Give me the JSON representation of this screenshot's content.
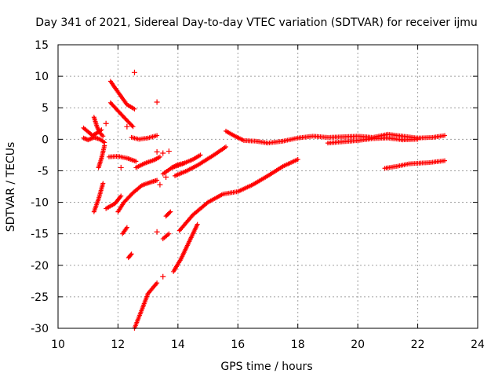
{
  "chart_data": {
    "type": "scatter",
    "title": "Day 341 of 2021, Sidereal Day-to-day VTEC variation (SDTVAR) for receiver ijmu",
    "xlabel": "GPS time / hours",
    "ylabel": "SDTVAR / TECUs",
    "xlim": [
      10,
      24
    ],
    "ylim": [
      -30,
      15
    ],
    "xticks": [
      10,
      12,
      14,
      16,
      18,
      20,
      22,
      24
    ],
    "yticks": [
      -30,
      -25,
      -20,
      -15,
      -10,
      -5,
      0,
      5,
      10,
      15
    ],
    "xtick_labels": [
      "10",
      "12",
      "14",
      "16",
      "18",
      "20",
      "22",
      "24"
    ],
    "ytick_labels": [
      "-30",
      "-25",
      "-20",
      "-15",
      "-10",
      "-5",
      "0",
      "5",
      "10",
      "15"
    ],
    "grid": true,
    "marker": "+",
    "color": "#ff0000",
    "traces": [
      {
        "x": [
          10.85,
          11.0,
          11.15,
          11.3,
          11.45
        ],
        "y": [
          1.8,
          1.2,
          0.6,
          1.0,
          1.5
        ]
      },
      {
        "x": [
          10.85,
          11.0,
          11.2,
          11.4,
          11.55
        ],
        "y": [
          0.2,
          -0.1,
          0.3,
          0.0,
          -0.5
        ]
      },
      {
        "x": [
          11.2,
          11.3,
          11.4,
          11.5
        ],
        "y": [
          3.5,
          2.0,
          1.0,
          0.5
        ]
      },
      {
        "x": [
          11.75,
          12.0,
          12.3,
          12.55
        ],
        "y": [
          9.2,
          7.5,
          5.5,
          4.8
        ]
      },
      {
        "x": [
          11.75,
          12.0,
          12.3,
          12.5
        ],
        "y": [
          5.8,
          4.5,
          3.0,
          2.0
        ]
      },
      {
        "x": [
          12.45,
          12.7,
          13.0,
          13.3
        ],
        "y": [
          0.3,
          0.0,
          0.2,
          0.6
        ]
      },
      {
        "x": [
          11.7,
          12.0,
          12.3,
          12.6
        ],
        "y": [
          -2.8,
          -2.7,
          -3.0,
          -3.5
        ]
      },
      {
        "x": [
          12.6,
          12.9,
          13.2,
          13.4
        ],
        "y": [
          -4.5,
          -3.8,
          -3.3,
          -2.8
        ]
      },
      {
        "x": [
          11.6,
          11.9,
          12.1
        ],
        "y": [
          -11.0,
          -10.2,
          -9.0
        ]
      },
      {
        "x": [
          12.0,
          12.2,
          12.5,
          12.8,
          13.1,
          13.3
        ],
        "y": [
          -11.5,
          -10.0,
          -8.5,
          -7.3,
          -6.8,
          -6.5
        ]
      },
      {
        "x": [
          11.2,
          11.35,
          11.5
        ],
        "y": [
          -11.5,
          -9.5,
          -7.0
        ]
      },
      {
        "x": [
          11.35,
          11.45,
          11.55
        ],
        "y": [
          -4.5,
          -3.0,
          -1.0
        ]
      },
      {
        "x": [
          12.15,
          12.3
        ],
        "y": [
          -15.0,
          -14.0
        ]
      },
      {
        "x": [
          12.35,
          12.45
        ],
        "y": [
          -18.8,
          -18.2
        ]
      },
      {
        "x": [
          12.55,
          12.8,
          13.0,
          13.3
        ],
        "y": [
          -30.0,
          -27.0,
          -24.5,
          -22.8
        ]
      },
      {
        "x": [
          13.5,
          13.7
        ],
        "y": [
          -15.8,
          -15.0
        ]
      },
      {
        "x": [
          13.6,
          13.75
        ],
        "y": [
          -12.2,
          -11.5
        ]
      },
      {
        "x": [
          13.5,
          13.8,
          14.1,
          14.5,
          14.75
        ],
        "y": [
          -5.5,
          -4.5,
          -4.0,
          -3.2,
          -2.5
        ]
      },
      {
        "x": [
          13.9,
          14.3,
          14.7,
          15.2,
          15.6
        ],
        "y": [
          -5.8,
          -5.0,
          -4.0,
          -2.5,
          -1.2
        ]
      },
      {
        "x": [
          13.8,
          14.0,
          14.2
        ],
        "y": [
          -4.5,
          -4.0,
          -3.8
        ]
      },
      {
        "x": [
          13.85,
          14.1,
          14.4,
          14.65
        ],
        "y": [
          -21.0,
          -19.0,
          -16.0,
          -13.5
        ]
      },
      {
        "x": [
          14.05,
          14.5,
          15.0,
          15.5,
          16.0,
          16.5,
          17.0,
          17.5,
          18.0
        ],
        "y": [
          -14.5,
          -12.0,
          -10.0,
          -8.7,
          -8.3,
          -7.2,
          -5.8,
          -4.3,
          -3.2
        ]
      },
      {
        "x": [
          15.6,
          15.9,
          16.2,
          16.6,
          17.0,
          17.5,
          18.0,
          18.5,
          19.0,
          19.5,
          20.0,
          20.5,
          21.0,
          21.5,
          22.0,
          22.5,
          22.9
        ],
        "y": [
          1.3,
          0.5,
          -0.2,
          -0.3,
          -0.6,
          -0.3,
          0.2,
          0.5,
          0.3,
          0.4,
          0.5,
          0.3,
          0.8,
          0.5,
          0.2,
          0.3,
          0.6
        ]
      },
      {
        "x": [
          19.0,
          19.5,
          20.0,
          20.5,
          21.0,
          21.5,
          22.0
        ],
        "y": [
          -0.6,
          -0.4,
          -0.2,
          0.1,
          0.2,
          -0.1,
          0.0
        ]
      },
      {
        "x": [
          20.9,
          21.3,
          21.7,
          22.0,
          22.4,
          22.9
        ],
        "y": [
          -4.6,
          -4.3,
          -3.9,
          -3.8,
          -3.7,
          -3.4
        ]
      }
    ],
    "points": [
      {
        "x": 12.55,
        "y": 10.6
      },
      {
        "x": 13.3,
        "y": 5.9
      },
      {
        "x": 13.3,
        "y": -2.0
      },
      {
        "x": 13.5,
        "y": -2.2
      },
      {
        "x": 13.7,
        "y": -1.9
      },
      {
        "x": 13.4,
        "y": -7.2
      },
      {
        "x": 13.6,
        "y": -6.0
      },
      {
        "x": 13.3,
        "y": -14.7
      },
      {
        "x": 13.5,
        "y": -21.8
      },
      {
        "x": 12.3,
        "y": 2.0
      },
      {
        "x": 11.6,
        "y": 2.5
      },
      {
        "x": 12.1,
        "y": -4.5
      }
    ]
  }
}
